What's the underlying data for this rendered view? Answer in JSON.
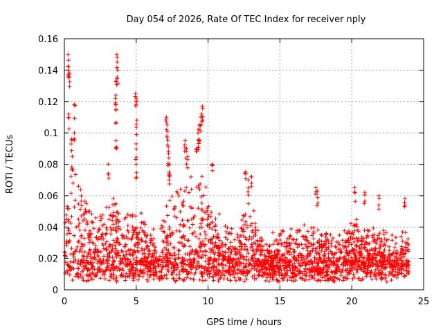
{
  "chart_data": {
    "type": "scatter",
    "title": "Day 054 of 2026, Rate Of TEC Index for receiver nply",
    "xlabel": "GPS time / hours",
    "ylabel": "ROTI / TECUs",
    "xlim": [
      0,
      25
    ],
    "ylim": [
      0,
      0.16
    ],
    "x_ticks": [
      0,
      5,
      10,
      15,
      20,
      25
    ],
    "x_tick_labels": [
      "0",
      "5",
      "10",
      "15",
      "20",
      "25"
    ],
    "y_ticks": [
      0,
      0.02,
      0.04,
      0.06,
      0.08,
      0.1,
      0.12,
      0.14,
      0.16
    ],
    "y_tick_labels": [
      "0",
      "0.02",
      "0.04",
      "0.06",
      "0.08",
      "0.1",
      "0.12",
      "0.14",
      "0.16"
    ],
    "grid": true,
    "marker": "plus",
    "series": [
      {
        "color": "#ff0000",
        "x_range": [
          0,
          24
        ],
        "baseline": {
          "min": 0.005,
          "typical": 0.015,
          "max": 0.045
        },
        "activity_envelope": [
          [
            0.0,
            0.035
          ],
          [
            0.5,
            0.06
          ],
          [
            1.0,
            0.05
          ],
          [
            2.0,
            0.035
          ],
          [
            3.0,
            0.04
          ],
          [
            3.5,
            0.045
          ],
          [
            4.0,
            0.035
          ],
          [
            5.0,
            0.035
          ],
          [
            6.0,
            0.03
          ],
          [
            6.5,
            0.02
          ],
          [
            7.0,
            0.04
          ],
          [
            8.0,
            0.05
          ],
          [
            9.0,
            0.05
          ],
          [
            9.5,
            0.055
          ],
          [
            10.0,
            0.04
          ],
          [
            11.0,
            0.03
          ],
          [
            12.0,
            0.03
          ],
          [
            12.8,
            0.045
          ],
          [
            13.5,
            0.03
          ],
          [
            14.0,
            0.02
          ],
          [
            15.0,
            0.03
          ],
          [
            16.0,
            0.03
          ],
          [
            17.0,
            0.03
          ],
          [
            18.0,
            0.03
          ],
          [
            19.0,
            0.025
          ],
          [
            20.0,
            0.035
          ],
          [
            21.0,
            0.03
          ],
          [
            22.0,
            0.03
          ],
          [
            23.0,
            0.025
          ],
          [
            24.0,
            0.03
          ]
        ],
        "peaks": [
          {
            "x": 0.25,
            "y": 0.15
          },
          {
            "x": 0.3,
            "y": 0.14
          },
          {
            "x": 0.35,
            "y": 0.138
          },
          {
            "x": 0.3,
            "y": 0.112
          },
          {
            "x": 0.7,
            "y": 0.118
          },
          {
            "x": 0.7,
            "y": 0.1
          },
          {
            "x": 0.5,
            "y": 0.096
          },
          {
            "x": 0.55,
            "y": 0.085
          },
          {
            "x": 3.65,
            "y": 0.15
          },
          {
            "x": 3.7,
            "y": 0.14
          },
          {
            "x": 3.6,
            "y": 0.133
          },
          {
            "x": 3.55,
            "y": 0.122
          },
          {
            "x": 3.6,
            "y": 0.115
          },
          {
            "x": 3.6,
            "y": 0.095
          },
          {
            "x": 3.05,
            "y": 0.08
          },
          {
            "x": 4.95,
            "y": 0.125
          },
          {
            "x": 5.0,
            "y": 0.122
          },
          {
            "x": 5.05,
            "y": 0.108
          },
          {
            "x": 5.0,
            "y": 0.093
          },
          {
            "x": 5.0,
            "y": 0.08
          },
          {
            "x": 7.1,
            "y": 0.11
          },
          {
            "x": 7.15,
            "y": 0.105
          },
          {
            "x": 7.2,
            "y": 0.095
          },
          {
            "x": 7.25,
            "y": 0.087
          },
          {
            "x": 7.3,
            "y": 0.08
          },
          {
            "x": 7.3,
            "y": 0.075
          },
          {
            "x": 8.4,
            "y": 0.095
          },
          {
            "x": 8.5,
            "y": 0.09
          },
          {
            "x": 8.6,
            "y": 0.085
          },
          {
            "x": 9.3,
            "y": 0.1
          },
          {
            "x": 9.4,
            "y": 0.105
          },
          {
            "x": 9.5,
            "y": 0.11
          },
          {
            "x": 9.6,
            "y": 0.117
          },
          {
            "x": 9.55,
            "y": 0.112
          },
          {
            "x": 9.35,
            "y": 0.095
          },
          {
            "x": 9.2,
            "y": 0.09
          },
          {
            "x": 10.3,
            "y": 0.08
          },
          {
            "x": 12.6,
            "y": 0.075
          },
          {
            "x": 13.0,
            "y": 0.072
          },
          {
            "x": 12.8,
            "y": 0.07
          },
          {
            "x": 17.5,
            "y": 0.065
          },
          {
            "x": 17.6,
            "y": 0.063
          },
          {
            "x": 20.2,
            "y": 0.065
          },
          {
            "x": 20.9,
            "y": 0.062
          },
          {
            "x": 21.9,
            "y": 0.06
          },
          {
            "x": 23.7,
            "y": 0.058
          }
        ]
      }
    ]
  }
}
